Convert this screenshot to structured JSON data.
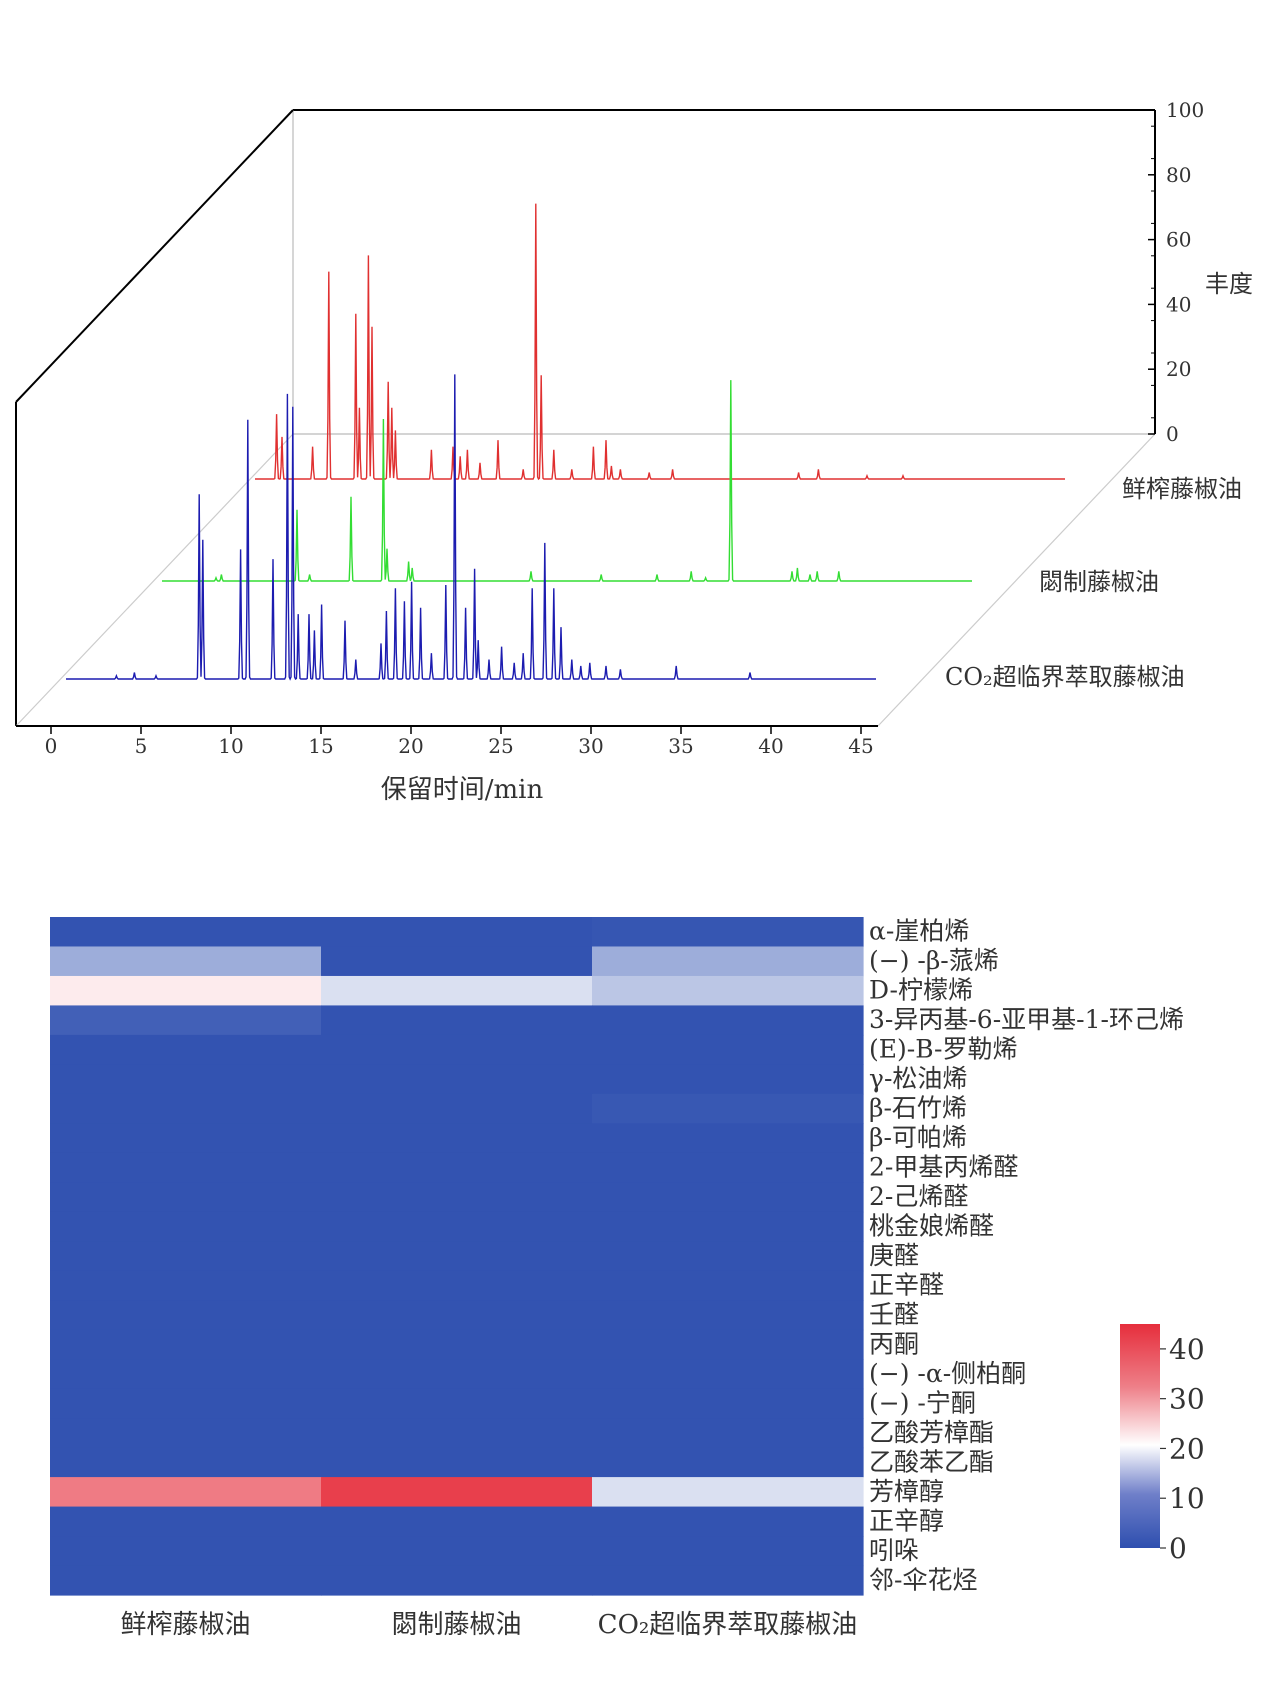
{
  "chart_data": [
    {
      "type": "line",
      "variant": "3d-stacked-chromatogram",
      "xlabel": "保留时间/min",
      "zlabel": "丰度",
      "xlim": [
        0,
        45
      ],
      "x_ticks": [
        "0",
        "5",
        "10",
        "15",
        "20",
        "25",
        "30",
        "35",
        "40",
        "45"
      ],
      "zlim": [
        0,
        100
      ],
      "z_ticks": [
        "0",
        "20",
        "40",
        "60",
        "80",
        "100"
      ],
      "series": [
        {
          "name": "鲜榨藤椒油",
          "color": "#e03030",
          "x_range": [
            0,
            45
          ],
          "peaks": [
            [
              1.2,
              20
            ],
            [
              1.5,
              13
            ],
            [
              3.2,
              10
            ],
            [
              4.1,
              64
            ],
            [
              5.6,
              51
            ],
            [
              5.8,
              22
            ],
            [
              6.3,
              69
            ],
            [
              6.5,
              47
            ],
            [
              7.4,
              30
            ],
            [
              7.6,
              22
            ],
            [
              7.8,
              15
            ],
            [
              9.8,
              9
            ],
            [
              11.0,
              10
            ],
            [
              11.4,
              7
            ],
            [
              11.8,
              9
            ],
            [
              12.5,
              5
            ],
            [
              13.5,
              12
            ],
            [
              14.9,
              3
            ],
            [
              15.6,
              85
            ],
            [
              15.9,
              32
            ],
            [
              16.6,
              9
            ],
            [
              17.6,
              3
            ],
            [
              18.8,
              10
            ],
            [
              19.5,
              12
            ],
            [
              19.8,
              4
            ],
            [
              20.3,
              3
            ],
            [
              21.9,
              2
            ],
            [
              23.2,
              3
            ],
            [
              30.2,
              2
            ],
            [
              31.3,
              3
            ],
            [
              34.0,
              1
            ],
            [
              36.0,
              1
            ]
          ]
        },
        {
          "name": "閟制藤椒油",
          "color": "#33dd33",
          "x_range": [
            0,
            45
          ],
          "peaks": [
            [
              3.0,
              1
            ],
            [
              3.3,
              2
            ],
            [
              7.5,
              22
            ],
            [
              8.2,
              2
            ],
            [
              10.5,
              26
            ],
            [
              12.3,
              50
            ],
            [
              12.5,
              10
            ],
            [
              13.7,
              6
            ],
            [
              13.9,
              4
            ],
            [
              20.5,
              3
            ],
            [
              24.4,
              2
            ],
            [
              27.5,
              2
            ],
            [
              29.4,
              3
            ],
            [
              30.2,
              1
            ],
            [
              31.6,
              62
            ],
            [
              35.0,
              3
            ],
            [
              35.3,
              4
            ],
            [
              36.0,
              2
            ],
            [
              36.4,
              3
            ],
            [
              37.6,
              3
            ]
          ]
        },
        {
          "name": "CO₂超临界萃取藤椒油",
          "color": "#1c1cb0",
          "x_range": [
            0,
            45
          ],
          "peaks": [
            [
              2.8,
              1
            ],
            [
              3.8,
              2
            ],
            [
              5.0,
              1
            ],
            [
              7.4,
              57
            ],
            [
              7.6,
              43
            ],
            [
              9.7,
              40
            ],
            [
              10.1,
              80
            ],
            [
              11.5,
              37
            ],
            [
              12.3,
              88
            ],
            [
              12.6,
              84
            ],
            [
              12.9,
              20
            ],
            [
              13.5,
              20
            ],
            [
              13.8,
              15
            ],
            [
              14.2,
              23
            ],
            [
              15.5,
              18
            ],
            [
              16.1,
              6
            ],
            [
              17.5,
              11
            ],
            [
              17.8,
              21
            ],
            [
              18.3,
              28
            ],
            [
              18.8,
              24
            ],
            [
              19.2,
              30
            ],
            [
              19.7,
              22
            ],
            [
              20.3,
              8
            ],
            [
              21.1,
              29
            ],
            [
              21.6,
              94
            ],
            [
              22.2,
              22
            ],
            [
              22.7,
              34
            ],
            [
              22.9,
              12
            ],
            [
              23.5,
              6
            ],
            [
              24.2,
              10
            ],
            [
              24.9,
              5
            ],
            [
              25.4,
              8
            ],
            [
              25.9,
              28
            ],
            [
              26.6,
              42
            ],
            [
              27.1,
              28
            ],
            [
              27.5,
              16
            ],
            [
              28.1,
              6
            ],
            [
              28.6,
              4
            ],
            [
              29.1,
              5
            ],
            [
              30.0,
              4
            ],
            [
              30.8,
              3
            ],
            [
              33.9,
              4
            ],
            [
              38.0,
              2
            ]
          ]
        }
      ]
    },
    {
      "type": "heatmap",
      "columns": [
        "鲜榨藤椒油",
        "閟制藤椒油",
        "CO₂超临界萃取藤椒油"
      ],
      "rows": [
        "α-崖柏烯",
        "(−) -β-蒎烯",
        "D-柠檬烯",
        "3-异丙基-6-亚甲基-1-环己烯",
        "(E)-B-罗勒烯",
        "γ-松油烯",
        "β-石竹烯",
        "β-可帕烯",
        "2-甲基丙烯醛",
        "2-己烯醛",
        "桃金娘烯醛",
        "庚醛",
        "正辛醛",
        "壬醛",
        "丙酮",
        "(−) -α-侧柏酮",
        "(−) -宁酮",
        "乙酸芳樟酯",
        "乙酸苯乙酯",
        "芳樟醇",
        "正辛醇",
        "吲哚",
        "邻-伞花烃"
      ],
      "values": [
        [
          0.5,
          0.5,
          0.8
        ],
        [
          11,
          0.5,
          11
        ],
        [
          23,
          17,
          14
        ],
        [
          2,
          0.5,
          0.5
        ],
        [
          0.5,
          0.5,
          0.5
        ],
        [
          0.5,
          0.5,
          0.5
        ],
        [
          0.5,
          0.5,
          1
        ],
        [
          0.5,
          0.5,
          0.5
        ],
        [
          0.5,
          0.5,
          0.5
        ],
        [
          0.5,
          0.5,
          0.5
        ],
        [
          0.5,
          0.5,
          0.5
        ],
        [
          0.5,
          0.5,
          0.5
        ],
        [
          0.5,
          0.5,
          0.5
        ],
        [
          0.5,
          0.5,
          0.5
        ],
        [
          0.5,
          0.5,
          0.5
        ],
        [
          0.5,
          0.5,
          0.5
        ],
        [
          0.5,
          0.5,
          0.5
        ],
        [
          0.5,
          0.5,
          0.5
        ],
        [
          0.5,
          0.5,
          0.5
        ],
        [
          36,
          43,
          17
        ],
        [
          0.5,
          0.5,
          0.5
        ],
        [
          0.5,
          0.5,
          0.5
        ],
        [
          0.5,
          0.5,
          0.5
        ]
      ],
      "colorbar": {
        "ticks": [
          "0",
          "10",
          "20",
          "30",
          "40"
        ],
        "range": [
          0,
          45
        ],
        "colors": [
          "#2e4faf",
          "#ffffff",
          "#e62e3c"
        ]
      }
    }
  ]
}
